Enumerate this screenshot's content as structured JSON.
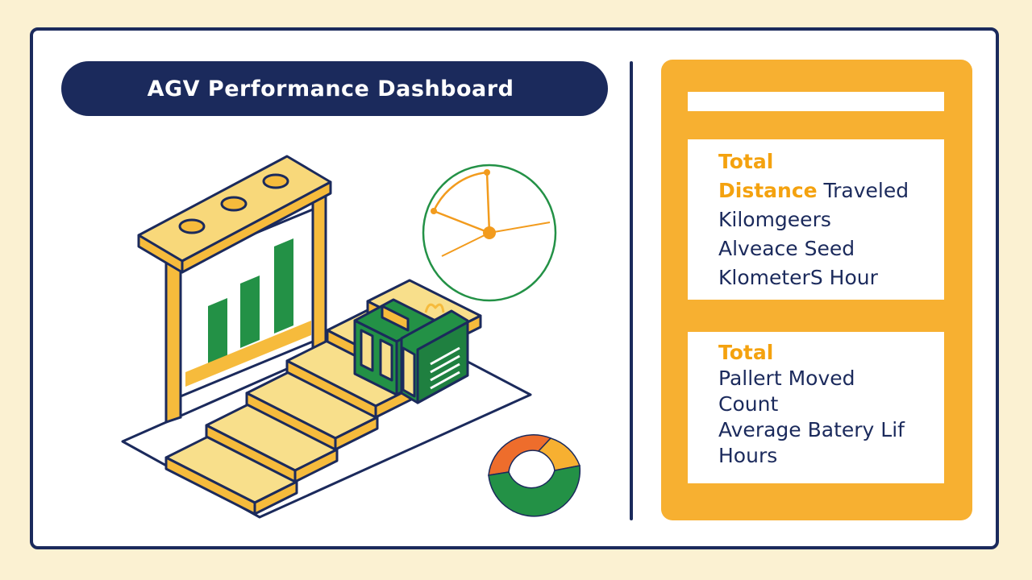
{
  "header": {
    "title": "AGV Performance Dashboard"
  },
  "stats": {
    "card1": {
      "line1_accent": "Total",
      "line2_accent": "Distance",
      "line2_rest": " Traveled",
      "line3": "Kilomgeers",
      "line4": "Alveace  Seed",
      "line5": "KlometerS  Hour"
    },
    "card2": {
      "line1_accent": "Total",
      "line2": "Pallert   Moved",
      "line3": "Count",
      "line4": "Average  Batery  Lif",
      "line5": "Hours"
    }
  },
  "colors": {
    "navy": "#1b2a5c",
    "amber": "#f7b031",
    "accent_text": "#f4a20f",
    "green": "#239146",
    "orange": "#ee6d2c",
    "pale_yellow": "#f8df8b",
    "background": "#fbf1d2"
  },
  "icons": {
    "display_board": "bar-chart-board-icon",
    "agv": "agv-robot-icon",
    "clock": "clock-gauge-icon",
    "donut": "donut-chart-icon"
  }
}
